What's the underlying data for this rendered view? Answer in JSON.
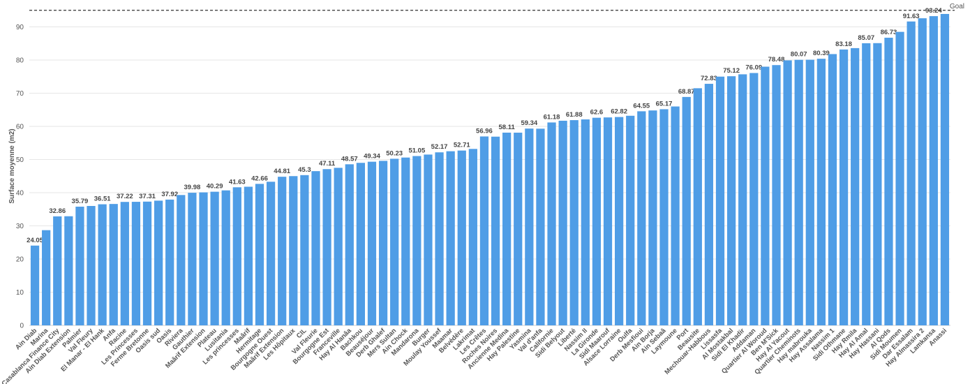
{
  "chart_data": {
    "type": "bar",
    "y_label": "Surface moyenne (m2)",
    "color": "#4f9de6",
    "categories": [
      "Ain Diab",
      "Marina",
      "Casablanca Finance City",
      "Ain Diab Extension",
      "Palmier",
      "Val Fleury",
      "El Manar - El Hank",
      "Anfa",
      "Racine",
      "Les Princesses",
      "Ferme Bretonne",
      "Oasis sud",
      "Oasis",
      "Riviera",
      "Gauthier",
      "Maârif Extension",
      "Plateau",
      "Lusitania",
      "Les princesses",
      "Maârif",
      "Hermitage",
      "Bourgogne Ouest",
      "Maârif Extension",
      "Les Hôpitaux",
      "CIL",
      "Val Fleurie",
      "Bourgogne Est",
      "Franceville",
      "Hay Al Hanâa",
      "Bachkou",
      "Beauséjour",
      "Derb Ghalef",
      "Mers Sultan",
      "Ain Chock",
      "Mandarona",
      "Burger",
      "Moulay Youssef",
      "Maamar",
      "Belvédère",
      "Lakrimat",
      "Les Crêtes",
      "Roches Noires",
      "Ancienne Medina",
      "Hay Palestine",
      "Yasmina",
      "Val d'anfa",
      "Californie",
      "Sidi Belyout",
      "Liberté",
      "Nassim II",
      "La Gironde",
      "Sidi Maarouf",
      "Alsace Lorraine",
      "Oulfa",
      "Derb Mesfioui",
      "Ain Borja",
      "Ain Sebaâ",
      "Laymoune",
      "Port",
      "Beausite",
      "Mechouar-Habbous",
      "Lissasfa",
      "Al Mostakbal",
      "Sidi El Khadir",
      "Addaman",
      "Quartier Al Woroud",
      "Ben M'Sick",
      "Hay Al Yacout",
      "Quartier Cheminots",
      "Hay mabrouka",
      "Hay Assalama",
      "Nassim 1",
      "Sidi Othmane",
      "Hay Rmila",
      "Hay Al Amal",
      "Hay Hassani",
      "Al Qods",
      "Sidi Moumen",
      "Dar Essalam",
      "Hay Almassira 2",
      "Lamkansa",
      "Anassi"
    ],
    "values": [
      24.05,
      28.7,
      32.86,
      32.9,
      35.79,
      36.0,
      36.51,
      36.6,
      37.22,
      37.25,
      37.31,
      37.6,
      37.92,
      39.3,
      39.98,
      40.1,
      40.29,
      40.7,
      41.63,
      41.8,
      42.66,
      43.3,
      44.81,
      45.0,
      45.3,
      46.5,
      47.11,
      47.5,
      48.57,
      49.0,
      49.34,
      49.6,
      50.23,
      50.6,
      51.05,
      51.5,
      52.17,
      52.5,
      52.71,
      53.2,
      56.96,
      56.9,
      58.11,
      58.1,
      59.34,
      59.3,
      61.18,
      61.7,
      61.88,
      62.1,
      62.6,
      62.7,
      62.82,
      63.2,
      64.55,
      64.8,
      65.17,
      66.0,
      68.87,
      71.5,
      72.83,
      75.0,
      75.12,
      75.7,
      76.09,
      78.0,
      78.48,
      79.9,
      80.07,
      80.1,
      80.39,
      81.8,
      83.18,
      83.6,
      85.07,
      85.1,
      86.73,
      88.5,
      91.63,
      92.6,
      93.24,
      93.9
    ],
    "ylim": [
      0,
      96
    ],
    "yticks": [
      0,
      10,
      20,
      30,
      40,
      50,
      60,
      70,
      80,
      90
    ],
    "grid": true,
    "goal": {
      "value": 95,
      "label": "Goal"
    }
  }
}
